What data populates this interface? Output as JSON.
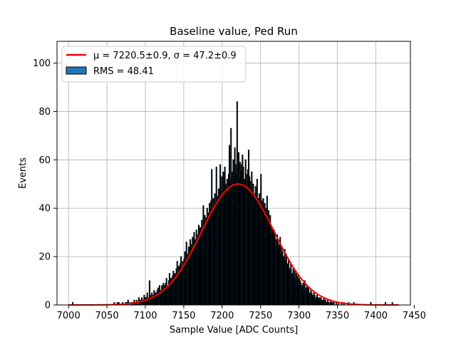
{
  "chart_data": {
    "type": "bar",
    "title": "Baseline value, Ped Run",
    "xlabel": "Sample Value [ADC Counts]",
    "ylabel": "Events",
    "xlim": [
      6985,
      7445
    ],
    "ylim": [
      0,
      109
    ],
    "grid": true,
    "legend_position": "upper-left",
    "x_ticks": [
      7000,
      7050,
      7100,
      7150,
      7200,
      7250,
      7300,
      7350,
      7400,
      7450
    ],
    "y_ticks": [
      0,
      20,
      40,
      60,
      80,
      100
    ],
    "x_tick_labels": [
      "7000",
      "7050",
      "7100",
      "7150",
      "7200",
      "7250",
      "7300",
      "7350",
      "7400",
      "7450"
    ],
    "y_tick_labels": [
      "0",
      "20",
      "40",
      "60",
      "80",
      "100"
    ],
    "histogram": {
      "name": "RMS = 48.41",
      "bin_start": 7000,
      "bin_width": 1,
      "face_color": "#1f77b4",
      "edge_color": "#000000",
      "values": [
        0,
        0,
        0,
        0,
        0,
        1,
        0,
        0,
        0,
        0,
        0,
        0,
        0,
        0,
        0,
        0,
        0,
        0,
        0,
        0,
        0,
        0,
        0,
        0,
        0,
        0,
        0,
        0,
        0,
        0,
        0,
        0,
        0,
        0,
        0,
        0,
        0,
        0,
        0,
        0,
        0,
        0,
        0,
        0,
        0,
        0,
        0,
        0,
        0,
        0,
        0,
        0,
        0,
        0,
        0,
        0,
        0,
        0,
        0,
        1,
        0,
        0,
        0,
        1,
        0,
        1,
        0,
        0,
        0,
        0,
        1,
        0,
        0,
        0,
        1,
        1,
        0,
        2,
        1,
        0,
        0,
        1,
        0,
        1,
        0,
        2,
        1,
        0,
        2,
        1,
        0,
        3,
        2,
        1,
        2,
        3,
        1,
        2,
        4,
        3,
        2,
        3,
        5,
        2,
        3,
        10,
        4,
        3,
        5,
        4,
        3,
        6,
        4,
        5,
        4,
        6,
        7,
        5,
        8,
        4,
        6,
        8,
        7,
        9,
        5,
        8,
        9,
        11,
        7,
        8,
        10,
        13,
        9,
        11,
        10,
        12,
        14,
        11,
        13,
        12,
        15,
        18,
        13,
        16,
        14,
        17,
        20,
        15,
        18,
        16,
        19,
        22,
        17,
        26,
        21,
        20,
        24,
        22,
        27,
        25,
        23,
        28,
        24,
        30,
        27,
        26,
        31,
        25,
        29,
        33,
        28,
        32,
        30,
        35,
        31,
        41,
        34,
        37,
        33,
        36,
        40,
        35,
        38,
        42,
        37,
        43,
        56,
        39,
        44,
        41,
        46,
        42,
        57,
        45,
        43,
        48,
        44,
        58,
        47,
        53,
        46,
        55,
        48,
        57,
        50,
        49,
        52,
        47,
        54,
        66,
        51,
        73,
        53,
        55,
        60,
        52,
        65,
        58,
        54,
        84,
        56,
        63,
        52,
        59,
        55,
        58,
        62,
        57,
        50,
        52,
        60,
        54,
        49,
        56,
        64,
        53,
        51,
        48,
        55,
        47,
        50,
        46,
        43,
        49,
        45,
        52,
        44,
        42,
        46,
        40,
        54,
        43,
        41,
        44,
        39,
        42,
        38,
        40,
        45,
        36,
        39,
        35,
        37,
        33,
        29,
        32,
        28,
        31,
        30,
        27,
        24,
        29,
        26,
        23,
        25,
        28,
        21,
        24,
        22,
        20,
        19,
        23,
        18,
        21,
        17,
        16,
        19,
        15,
        14,
        17,
        13,
        12,
        15,
        11,
        14,
        10,
        13,
        9,
        12,
        8,
        11,
        10,
        9,
        7,
        8,
        9,
        6,
        10,
        7,
        5,
        8,
        6,
        7,
        5,
        4,
        6,
        5,
        4,
        3,
        5,
        4,
        2,
        3,
        4,
        3,
        2,
        3,
        2,
        3,
        2,
        1,
        2,
        3,
        1,
        2,
        1,
        0,
        2,
        1,
        0,
        1,
        2,
        0,
        1,
        0,
        1,
        0,
        0,
        1,
        0,
        0,
        1,
        0,
        0,
        0,
        1,
        0,
        0,
        1,
        0,
        0,
        0,
        0,
        0,
        1,
        0,
        0,
        0,
        0,
        0,
        0,
        1,
        0,
        0,
        0,
        0,
        0,
        0,
        0,
        0,
        0,
        0,
        0,
        0,
        0,
        0,
        0,
        0,
        0,
        0,
        0,
        0,
        0,
        1,
        0,
        0,
        0,
        0,
        0,
        0,
        0,
        0,
        0,
        0,
        0,
        0,
        0,
        0,
        0,
        0,
        0,
        0,
        1,
        0,
        0,
        0,
        0,
        0,
        0,
        0,
        0,
        1
      ]
    },
    "fit": {
      "type": "gaussian",
      "name": "μ = 7220.5±0.9, σ = 47.2±0.9",
      "mu": 7220.5,
      "sigma": 47.2,
      "amplitude": 50,
      "x_range": [
        7000,
        7430
      ],
      "color": "#ff0000"
    },
    "legend": [
      {
        "label": "μ = 7220.5±0.9, σ = 47.2±0.9",
        "kind": "line",
        "color": "#ff0000"
      },
      {
        "label": "RMS = 48.41",
        "kind": "patch",
        "color": "#1f77b4"
      }
    ]
  }
}
